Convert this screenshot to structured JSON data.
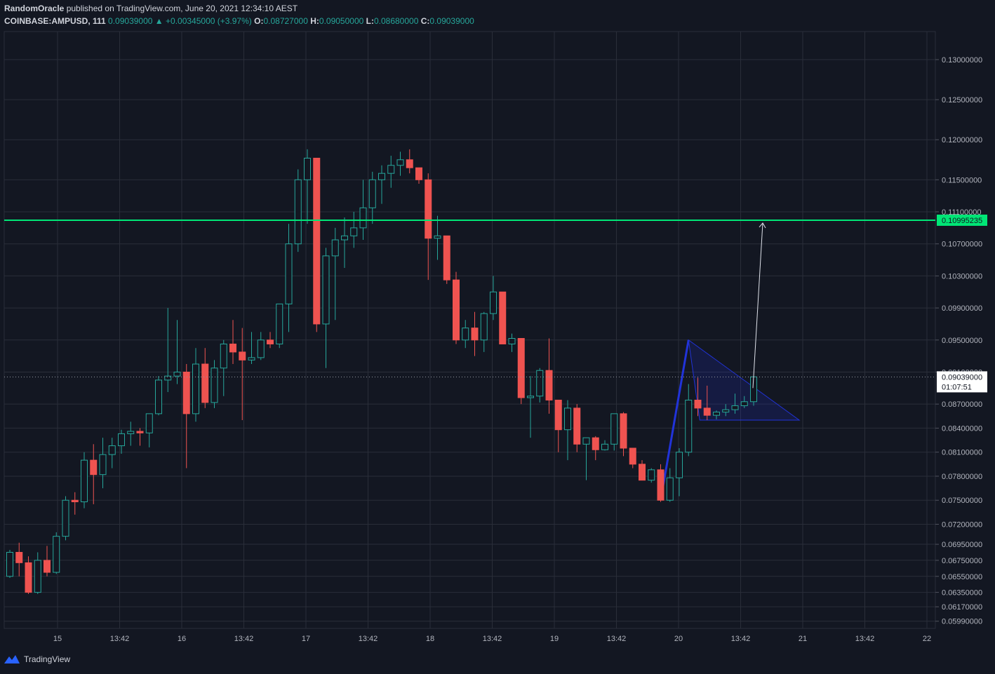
{
  "header": {
    "author": "RandomOracle",
    "published": "published on TradingView.com, June 20, 2021 12:34:10 AEST",
    "symbol": "COINBASE:AMPUSD, 111",
    "last": "0.09039000",
    "change": "▲ +0.00345000 (+3.97%)",
    "o_label": "O:",
    "o_value": "0.08727000",
    "h_label": "H:",
    "h_value": "0.09050000",
    "l_label": "L:",
    "l_value": "0.08680000",
    "c_label": "C:",
    "c_value": "0.09039000"
  },
  "footer": {
    "brand": "TradingView"
  },
  "colors": {
    "background": "#131722",
    "grid": "#2a2e39",
    "up": "#26a69a",
    "down": "#ef5350",
    "target_line": "#00e676",
    "pattern": "#2133d9",
    "axis_text": "#b2b5be"
  },
  "chart_data": {
    "type": "candlestick",
    "ylim": [
      0.059,
      0.1335
    ],
    "x_ticks": [
      "15",
      "13:42",
      "16",
      "13:42",
      "17",
      "13:42",
      "18",
      "13:42",
      "19",
      "13:42",
      "20",
      "13:42",
      "21",
      "13:42",
      "22"
    ],
    "y_ticks": [
      "0.13000000",
      "0.12500000",
      "0.12000000",
      "0.11500000",
      "0.11100000",
      "0.10700000",
      "0.10300000",
      "0.09900000",
      "0.09500000",
      "0.09100000",
      "0.08700000",
      "0.08400000",
      "0.08100000",
      "0.07800000",
      "0.07500000",
      "0.07200000",
      "0.06950000",
      "0.06750000",
      "0.06550000",
      "0.06350000",
      "0.06170000",
      "0.05990000"
    ],
    "target_price": "0.10995235",
    "current_price": "0.09039000",
    "countdown": "01:07:51",
    "candles": [
      [
        0.0655,
        0.0688,
        0.0653,
        0.0685
      ],
      [
        0.0685,
        0.0697,
        0.0655,
        0.0672
      ],
      [
        0.0672,
        0.068,
        0.0633,
        0.0635
      ],
      [
        0.0635,
        0.0685,
        0.0633,
        0.0675
      ],
      [
        0.0675,
        0.0693,
        0.0655,
        0.066
      ],
      [
        0.066,
        0.071,
        0.0658,
        0.0705
      ],
      [
        0.0705,
        0.0755,
        0.07,
        0.075
      ],
      [
        0.075,
        0.076,
        0.0732,
        0.0748
      ],
      [
        0.0748,
        0.081,
        0.074,
        0.08
      ],
      [
        0.08,
        0.082,
        0.0745,
        0.0782
      ],
      [
        0.0782,
        0.0828,
        0.0765,
        0.0807
      ],
      [
        0.0807,
        0.0828,
        0.079,
        0.0818
      ],
      [
        0.0818,
        0.0838,
        0.0808,
        0.0833
      ],
      [
        0.0833,
        0.0848,
        0.0818,
        0.0836
      ],
      [
        0.0836,
        0.084,
        0.0818,
        0.0834
      ],
      [
        0.0834,
        0.0855,
        0.0816,
        0.0858
      ],
      [
        0.0858,
        0.0905,
        0.0856,
        0.09
      ],
      [
        0.09,
        0.099,
        0.0885,
        0.0905
      ],
      [
        0.0905,
        0.0975,
        0.0895,
        0.091
      ],
      [
        0.091,
        0.092,
        0.079,
        0.0858
      ],
      [
        0.0858,
        0.094,
        0.0848,
        0.092
      ],
      [
        0.092,
        0.094,
        0.0865,
        0.0872
      ],
      [
        0.0872,
        0.0925,
        0.0865,
        0.0915
      ],
      [
        0.0915,
        0.095,
        0.088,
        0.0945
      ],
      [
        0.0945,
        0.0975,
        0.092,
        0.0935
      ],
      [
        0.0935,
        0.0965,
        0.085,
        0.0925
      ],
      [
        0.0925,
        0.096,
        0.092,
        0.0928
      ],
      [
        0.0928,
        0.096,
        0.0925,
        0.095
      ],
      [
        0.095,
        0.096,
        0.094,
        0.0945
      ],
      [
        0.0945,
        0.099,
        0.094,
        0.0995
      ],
      [
        0.0995,
        0.1095,
        0.096,
        0.107
      ],
      [
        0.107,
        0.1163,
        0.106,
        0.115
      ],
      [
        0.115,
        0.1188,
        0.1095,
        0.1177
      ],
      [
        0.1177,
        0.1177,
        0.096,
        0.097
      ],
      [
        0.097,
        0.1065,
        0.0915,
        0.1055
      ],
      [
        0.1055,
        0.109,
        0.0975,
        0.1075
      ],
      [
        0.1075,
        0.1103,
        0.104,
        0.108
      ],
      [
        0.108,
        0.111,
        0.1065,
        0.109
      ],
      [
        0.109,
        0.115,
        0.1075,
        0.1115
      ],
      [
        0.1115,
        0.116,
        0.1095,
        0.115
      ],
      [
        0.115,
        0.1168,
        0.112,
        0.1158
      ],
      [
        0.1158,
        0.118,
        0.114,
        0.1168
      ],
      [
        0.1168,
        0.1185,
        0.1155,
        0.1175
      ],
      [
        0.1175,
        0.1188,
        0.1158,
        0.1165
      ],
      [
        0.1165,
        0.1165,
        0.1145,
        0.115
      ],
      [
        0.115,
        0.1158,
        0.1025,
        0.1077
      ],
      [
        0.1077,
        0.1105,
        0.105,
        0.108
      ],
      [
        0.108,
        0.108,
        0.102,
        0.1025
      ],
      [
        0.1025,
        0.1035,
        0.0945,
        0.095
      ],
      [
        0.095,
        0.0975,
        0.094,
        0.0965
      ],
      [
        0.0965,
        0.0985,
        0.093,
        0.095
      ],
      [
        0.095,
        0.0985,
        0.0935,
        0.0983
      ],
      [
        0.0983,
        0.103,
        0.0975,
        0.101
      ],
      [
        0.101,
        0.1005,
        0.0945,
        0.0945
      ],
      [
        0.0945,
        0.0958,
        0.0935,
        0.0952
      ],
      [
        0.0952,
        0.0952,
        0.087,
        0.0878
      ],
      [
        0.0878,
        0.0905,
        0.0828,
        0.088
      ],
      [
        0.088,
        0.0915,
        0.0872,
        0.0912
      ],
      [
        0.0912,
        0.0952,
        0.0858,
        0.0875
      ],
      [
        0.0875,
        0.0868,
        0.081,
        0.0838
      ],
      [
        0.0838,
        0.0875,
        0.08,
        0.0865
      ],
      [
        0.0865,
        0.087,
        0.081,
        0.082
      ],
      [
        0.082,
        0.0828,
        0.0775,
        0.0828
      ],
      [
        0.0828,
        0.083,
        0.08,
        0.0813
      ],
      [
        0.0813,
        0.0825,
        0.0812,
        0.082
      ],
      [
        0.082,
        0.0855,
        0.0812,
        0.0858
      ],
      [
        0.0858,
        0.086,
        0.0805,
        0.0815
      ],
      [
        0.0815,
        0.0815,
        0.079,
        0.0795
      ],
      [
        0.0795,
        0.08,
        0.0775,
        0.0775
      ],
      [
        0.0775,
        0.079,
        0.0772,
        0.0788
      ],
      [
        0.0788,
        0.0795,
        0.0748,
        0.075
      ],
      [
        0.075,
        0.079,
        0.0748,
        0.0778
      ],
      [
        0.0778,
        0.0815,
        0.0755,
        0.081
      ],
      [
        0.081,
        0.0895,
        0.0805,
        0.0875
      ],
      [
        0.0875,
        0.0903,
        0.0855,
        0.0865
      ],
      [
        0.0865,
        0.0893,
        0.085,
        0.0856
      ],
      [
        0.0856,
        0.0862,
        0.0851,
        0.086
      ],
      [
        0.086,
        0.087,
        0.0855,
        0.0863
      ],
      [
        0.0863,
        0.0883,
        0.0858,
        0.0868
      ],
      [
        0.0868,
        0.088,
        0.0865,
        0.0873
      ],
      [
        0.0873,
        0.0905,
        0.0868,
        0.0904
      ]
    ]
  }
}
